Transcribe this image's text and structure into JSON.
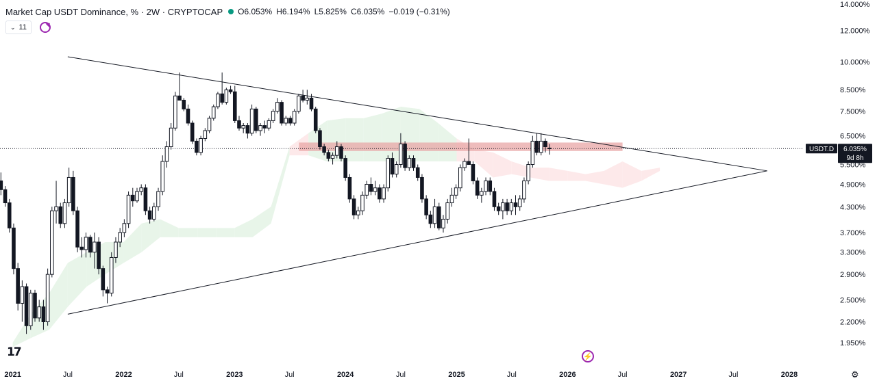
{
  "header": {
    "title": "Market Cap USDT Dominance, % · 2W · CRYPTOCAP",
    "open_label": "O",
    "open_value": "6.053%",
    "high_label": "H",
    "high_value": "6.194%",
    "low_label": "L",
    "low_value": "5.825%",
    "close_label": "C",
    "close_value": "6.035%",
    "change": "−0.019 (−0.31%)",
    "status_color": "#089981"
  },
  "controls": {
    "indicator_count": "11",
    "refresh_icon": "refresh-icon"
  },
  "price_label": {
    "symbol": "USDT.D",
    "value": "6.035%",
    "countdown": "9d 8h"
  },
  "colors": {
    "up_candle": "#ffffff",
    "down_candle": "#131722",
    "cloud_bull": "#e8f5e9",
    "cloud_bear": "#fde9ea",
    "resistance_zone": "#e8a6a6",
    "trendline": "#131722",
    "accent": "#9c27b0"
  },
  "chart_data": {
    "type": "candlestick",
    "title": "Market Cap USDT Dominance, % · 2W · CRYPTOCAP",
    "y_scale": "log",
    "y_ticks": [
      "14.000%",
      "12.000%",
      "10.000%",
      "8.500%",
      "7.500%",
      "6.500%",
      "5.500%",
      "4.900%",
      "4.300%",
      "3.700%",
      "3.300%",
      "2.900%",
      "2.500%",
      "2.200%",
      "1.950%"
    ],
    "y_tick_values": [
      14,
      12,
      10,
      8.5,
      7.5,
      6.5,
      5.5,
      4.9,
      4.3,
      3.7,
      3.3,
      2.9,
      2.5,
      2.2,
      1.95
    ],
    "x_ticks": [
      "2021",
      "Jul",
      "2022",
      "Jul",
      "2023",
      "Jul",
      "2024",
      "Jul",
      "2025",
      "Jul",
      "2026",
      "Jul",
      "2027",
      "Jul",
      "2028"
    ],
    "x_tick_dates": [
      "2021-01-01",
      "2021-07-01",
      "2022-01-01",
      "2022-07-01",
      "2023-01-01",
      "2023-07-01",
      "2024-01-01",
      "2024-07-01",
      "2025-01-01",
      "2025-07-01",
      "2026-01-01",
      "2026-07-01",
      "2027-01-01",
      "2027-07-01",
      "2028-01-01"
    ],
    "last_price": 6.035,
    "candles": [
      [
        "2020-11-23",
        5.0,
        5.25,
        4.6,
        4.75
      ],
      [
        "2020-12-07",
        4.75,
        4.85,
        4.3,
        4.4
      ],
      [
        "2020-12-21",
        4.4,
        4.5,
        3.7,
        3.8
      ],
      [
        "2021-01-04",
        3.8,
        3.9,
        2.9,
        3.0
      ],
      [
        "2021-01-18",
        3.0,
        3.1,
        2.35,
        2.45
      ],
      [
        "2021-02-01",
        2.45,
        2.8,
        2.2,
        2.7
      ],
      [
        "2021-02-15",
        2.7,
        2.75,
        2.05,
        2.15
      ],
      [
        "2021-03-01",
        2.15,
        2.65,
        2.1,
        2.6
      ],
      [
        "2021-03-15",
        2.6,
        2.65,
        2.2,
        2.25
      ],
      [
        "2021-03-29",
        2.25,
        2.5,
        2.2,
        2.4
      ],
      [
        "2021-04-12",
        2.4,
        2.5,
        2.1,
        2.2
      ],
      [
        "2021-04-26",
        2.2,
        3.0,
        2.15,
        2.9
      ],
      [
        "2021-05-10",
        2.9,
        4.3,
        2.85,
        4.2
      ],
      [
        "2021-05-24",
        4.2,
        5.0,
        3.9,
        4.3
      ],
      [
        "2021-06-07",
        4.3,
        4.4,
        3.8,
        3.9
      ],
      [
        "2021-06-21",
        3.9,
        4.5,
        3.8,
        4.4
      ],
      [
        "2021-07-05",
        4.4,
        5.4,
        4.3,
        5.1
      ],
      [
        "2021-07-19",
        5.1,
        5.3,
        4.1,
        4.2
      ],
      [
        "2021-08-02",
        4.2,
        4.3,
        3.3,
        3.4
      ],
      [
        "2021-08-16",
        3.4,
        3.6,
        3.2,
        3.35
      ],
      [
        "2021-08-30",
        3.35,
        3.7,
        3.2,
        3.6
      ],
      [
        "2021-09-13",
        3.6,
        3.65,
        3.2,
        3.3
      ],
      [
        "2021-09-27",
        3.3,
        3.7,
        3.0,
        3.5
      ],
      [
        "2021-10-11",
        3.5,
        3.6,
        2.9,
        3.0
      ],
      [
        "2021-10-25",
        3.0,
        3.05,
        2.55,
        2.65
      ],
      [
        "2021-11-08",
        2.65,
        2.7,
        2.45,
        2.6
      ],
      [
        "2021-11-22",
        2.6,
        3.3,
        2.55,
        3.2
      ],
      [
        "2021-12-06",
        3.2,
        3.6,
        3.1,
        3.5
      ],
      [
        "2021-12-20",
        3.5,
        3.8,
        3.4,
        3.7
      ],
      [
        "2022-01-03",
        3.7,
        4.0,
        3.6,
        3.9
      ],
      [
        "2022-01-17",
        3.9,
        4.7,
        3.8,
        4.6
      ],
      [
        "2022-01-31",
        4.6,
        4.8,
        4.3,
        4.45
      ],
      [
        "2022-02-14",
        4.45,
        4.8,
        4.4,
        4.7
      ],
      [
        "2022-02-28",
        4.7,
        4.9,
        4.6,
        4.8
      ],
      [
        "2022-03-14",
        4.8,
        4.9,
        4.1,
        4.2
      ],
      [
        "2022-03-28",
        4.2,
        4.3,
        3.9,
        4.0
      ],
      [
        "2022-04-11",
        4.0,
        4.4,
        3.95,
        4.3
      ],
      [
        "2022-04-25",
        4.3,
        4.8,
        4.2,
        4.7
      ],
      [
        "2022-05-09",
        4.7,
        5.8,
        4.6,
        5.6
      ],
      [
        "2022-05-23",
        5.6,
        6.3,
        5.4,
        6.1
      ],
      [
        "2022-06-06",
        6.1,
        7.0,
        6.0,
        6.8
      ],
      [
        "2022-06-20",
        6.8,
        8.4,
        6.7,
        8.2
      ],
      [
        "2022-07-04",
        8.2,
        9.4,
        8.0,
        8.0
      ],
      [
        "2022-07-18",
        8.0,
        8.1,
        7.5,
        7.6
      ],
      [
        "2022-08-01",
        7.6,
        7.8,
        6.9,
        7.0
      ],
      [
        "2022-08-15",
        7.0,
        7.1,
        6.2,
        6.3
      ],
      [
        "2022-08-29",
        6.3,
        6.4,
        5.8,
        5.9
      ],
      [
        "2022-09-12",
        5.9,
        6.5,
        5.8,
        6.4
      ],
      [
        "2022-09-26",
        6.4,
        6.8,
        6.3,
        6.7
      ],
      [
        "2022-10-10",
        6.7,
        7.3,
        6.6,
        7.2
      ],
      [
        "2022-10-24",
        7.2,
        7.8,
        7.1,
        7.7
      ],
      [
        "2022-11-07",
        7.7,
        8.4,
        7.6,
        8.3
      ],
      [
        "2022-11-21",
        8.3,
        9.4,
        7.8,
        7.9
      ],
      [
        "2022-12-05",
        7.9,
        8.6,
        7.8,
        8.5
      ],
      [
        "2022-12-19",
        8.5,
        8.7,
        8.3,
        8.4
      ],
      [
        "2023-01-02",
        8.4,
        8.7,
        7.0,
        7.1
      ],
      [
        "2023-01-16",
        7.1,
        7.3,
        6.7,
        6.8
      ],
      [
        "2023-01-30",
        6.8,
        7.0,
        6.6,
        6.9
      ],
      [
        "2023-02-13",
        6.9,
        7.0,
        6.4,
        6.6
      ],
      [
        "2023-02-27",
        6.6,
        7.8,
        6.5,
        7.6
      ],
      [
        "2023-03-13",
        7.6,
        7.7,
        6.6,
        6.7
      ],
      [
        "2023-03-27",
        6.7,
        7.0,
        6.5,
        6.9
      ],
      [
        "2023-04-10",
        6.9,
        7.1,
        6.6,
        6.8
      ],
      [
        "2023-04-24",
        6.8,
        7.2,
        6.7,
        7.1
      ],
      [
        "2023-05-08",
        7.1,
        7.6,
        7.0,
        7.5
      ],
      [
        "2023-05-22",
        7.5,
        8.1,
        7.4,
        7.9
      ],
      [
        "2023-06-05",
        7.9,
        8.0,
        6.9,
        7.0
      ],
      [
        "2023-06-19",
        7.0,
        7.3,
        6.9,
        7.2
      ],
      [
        "2023-07-03",
        7.2,
        7.3,
        6.9,
        7.0
      ],
      [
        "2023-07-17",
        7.0,
        7.6,
        6.9,
        7.5
      ],
      [
        "2023-07-31",
        7.5,
        8.3,
        7.4,
        8.2
      ],
      [
        "2023-08-14",
        8.2,
        8.5,
        7.9,
        8.0
      ],
      [
        "2023-08-28",
        8.0,
        8.5,
        7.8,
        8.1
      ],
      [
        "2023-09-11",
        8.1,
        8.3,
        7.5,
        7.6
      ],
      [
        "2023-09-25",
        7.6,
        7.7,
        6.6,
        6.7
      ],
      [
        "2023-10-09",
        6.7,
        6.8,
        6.0,
        6.1
      ],
      [
        "2023-10-23",
        6.1,
        6.2,
        5.8,
        5.9
      ],
      [
        "2023-11-06",
        5.9,
        6.0,
        5.6,
        5.7
      ],
      [
        "2023-11-20",
        5.7,
        5.9,
        5.5,
        5.8
      ],
      [
        "2023-12-04",
        5.8,
        6.3,
        5.7,
        6.1
      ],
      [
        "2023-12-18",
        6.1,
        6.2,
        5.6,
        5.7
      ],
      [
        "2024-01-01",
        5.7,
        5.8,
        5.0,
        5.1
      ],
      [
        "2024-01-15",
        5.1,
        5.2,
        4.4,
        4.5
      ],
      [
        "2024-01-29",
        4.5,
        4.6,
        4.0,
        4.1
      ],
      [
        "2024-02-12",
        4.1,
        4.3,
        4.0,
        4.2
      ],
      [
        "2024-02-26",
        4.2,
        4.7,
        4.1,
        4.6
      ],
      [
        "2024-03-11",
        4.6,
        5.0,
        4.5,
        4.9
      ],
      [
        "2024-03-25",
        4.9,
        5.1,
        4.6,
        4.7
      ],
      [
        "2024-04-08",
        4.7,
        5.0,
        4.6,
        4.8
      ],
      [
        "2024-04-22",
        4.8,
        4.9,
        4.4,
        4.5
      ],
      [
        "2024-05-06",
        4.5,
        4.9,
        4.4,
        4.8
      ],
      [
        "2024-05-20",
        4.8,
        5.8,
        4.7,
        5.7
      ],
      [
        "2024-06-03",
        5.7,
        5.9,
        5.1,
        5.2
      ],
      [
        "2024-06-17",
        5.2,
        5.6,
        5.1,
        5.5
      ],
      [
        "2024-07-01",
        5.5,
        6.6,
        5.4,
        6.2
      ],
      [
        "2024-07-15",
        6.2,
        6.3,
        5.3,
        5.4
      ],
      [
        "2024-07-29",
        5.4,
        5.8,
        5.3,
        5.7
      ],
      [
        "2024-08-12",
        5.7,
        5.8,
        5.3,
        5.4
      ],
      [
        "2024-08-26",
        5.4,
        5.5,
        5.0,
        5.1
      ],
      [
        "2024-09-09",
        5.1,
        5.2,
        4.4,
        4.5
      ],
      [
        "2024-09-23",
        4.5,
        4.6,
        4.0,
        4.1
      ],
      [
        "2024-10-07",
        4.1,
        4.2,
        3.8,
        3.9
      ],
      [
        "2024-10-21",
        3.9,
        4.5,
        3.8,
        4.3
      ],
      [
        "2024-11-04",
        4.3,
        4.4,
        3.75,
        3.8
      ],
      [
        "2024-11-18",
        3.8,
        4.1,
        3.7,
        4.0
      ],
      [
        "2024-12-02",
        4.0,
        4.5,
        3.9,
        4.4
      ],
      [
        "2024-12-16",
        4.4,
        4.8,
        4.3,
        4.6
      ],
      [
        "2024-12-30",
        4.6,
        4.9,
        4.5,
        4.8
      ],
      [
        "2025-01-13",
        4.8,
        5.5,
        4.7,
        5.4
      ],
      [
        "2025-01-27",
        5.4,
        5.7,
        5.3,
        5.6
      ],
      [
        "2025-02-10",
        5.6,
        6.4,
        5.5,
        5.5
      ],
      [
        "2025-02-24",
        5.5,
        5.6,
        4.9,
        5.0
      ],
      [
        "2025-03-10",
        5.0,
        5.1,
        4.5,
        4.6
      ],
      [
        "2025-03-24",
        4.6,
        4.8,
        4.4,
        4.7
      ],
      [
        "2025-04-07",
        4.7,
        5.1,
        4.6,
        5.0
      ],
      [
        "2025-04-21",
        5.0,
        5.1,
        4.6,
        4.7
      ],
      [
        "2025-05-05",
        4.7,
        4.8,
        4.2,
        4.3
      ],
      [
        "2025-05-19",
        4.3,
        4.4,
        4.1,
        4.2
      ],
      [
        "2025-06-02",
        4.2,
        4.5,
        4.0,
        4.4
      ],
      [
        "2025-06-16",
        4.4,
        4.5,
        4.1,
        4.2
      ],
      [
        "2025-06-30",
        4.2,
        4.5,
        4.1,
        4.4
      ],
      [
        "2025-07-14",
        4.4,
        4.6,
        4.1,
        4.3
      ],
      [
        "2025-07-28",
        4.3,
        4.6,
        4.2,
        4.5
      ],
      [
        "2025-08-11",
        4.5,
        5.1,
        4.4,
        5.0
      ],
      [
        "2025-08-25",
        5.0,
        5.6,
        4.9,
        5.5
      ],
      [
        "2025-09-08",
        5.5,
        6.5,
        5.4,
        6.3
      ],
      [
        "2025-09-22",
        6.3,
        6.6,
        5.8,
        5.9
      ],
      [
        "2025-10-06",
        5.9,
        6.6,
        5.8,
        6.3
      ],
      [
        "2025-10-20",
        6.3,
        6.4,
        5.9,
        6.1
      ],
      [
        "2025-11-03",
        6.053,
        6.194,
        5.825,
        6.035
      ]
    ],
    "cloud": [
      [
        "2021-01-01",
        1.9,
        1.95
      ],
      [
        "2021-03-01",
        2.0,
        2.3
      ],
      [
        "2021-05-01",
        2.1,
        2.6
      ],
      [
        "2021-07-01",
        2.4,
        3.1
      ],
      [
        "2021-09-01",
        2.7,
        3.3
      ],
      [
        "2021-11-01",
        2.9,
        3.5
      ],
      [
        "2022-01-01",
        3.1,
        3.5
      ],
      [
        "2022-03-01",
        3.3,
        3.9
      ],
      [
        "2022-05-01",
        3.6,
        4.0
      ],
      [
        "2022-07-01",
        3.6,
        3.8
      ],
      [
        "2022-09-01",
        3.6,
        3.8
      ],
      [
        "2022-11-01",
        3.6,
        3.8
      ],
      [
        "2023-01-01",
        3.6,
        3.8
      ],
      [
        "2023-03-01",
        3.6,
        4.0
      ],
      [
        "2023-05-01",
        3.9,
        4.3
      ],
      [
        "2023-07-01",
        5.8,
        6.1
      ],
      [
        "2023-09-01",
        5.8,
        6.6
      ],
      [
        "2023-11-01",
        5.6,
        7.1
      ],
      [
        "2024-01-01",
        5.6,
        7.2
      ],
      [
        "2024-03-01",
        5.6,
        7.2
      ],
      [
        "2024-05-01",
        5.6,
        7.4
      ],
      [
        "2024-07-01",
        5.6,
        7.7
      ],
      [
        "2024-09-01",
        5.6,
        7.6
      ],
      [
        "2024-11-01",
        5.6,
        7.0
      ],
      [
        "2025-01-01",
        5.6,
        6.4
      ],
      [
        "2025-03-01",
        5.6,
        6.0
      ],
      [
        "2025-05-01",
        5.1,
        5.9
      ],
      [
        "2025-07-01",
        5.2,
        5.6
      ],
      [
        "2025-09-01",
        5.1,
        5.4
      ],
      [
        "2025-11-01",
        5.0,
        5.4
      ],
      [
        "2026-01-01",
        5.0,
        5.3
      ],
      [
        "2026-03-01",
        5.0,
        5.2
      ],
      [
        "2026-05-01",
        4.9,
        5.3
      ],
      [
        "2026-07-01",
        4.8,
        5.6
      ],
      [
        "2026-09-01",
        5.0,
        5.3
      ],
      [
        "2026-11-01",
        5.3,
        5.4
      ]
    ],
    "resistance_zone": {
      "from": "2023-08-01",
      "to": "2026-07-01",
      "low": 5.95,
      "high": 6.25
    },
    "trendlines": [
      {
        "from": [
          "2021-07-01",
          10.3
        ],
        "to": [
          "2027-10-20",
          5.3
        ]
      },
      {
        "from": [
          "2021-07-01",
          2.3
        ],
        "to": [
          "2027-10-20",
          5.3
        ]
      }
    ]
  }
}
